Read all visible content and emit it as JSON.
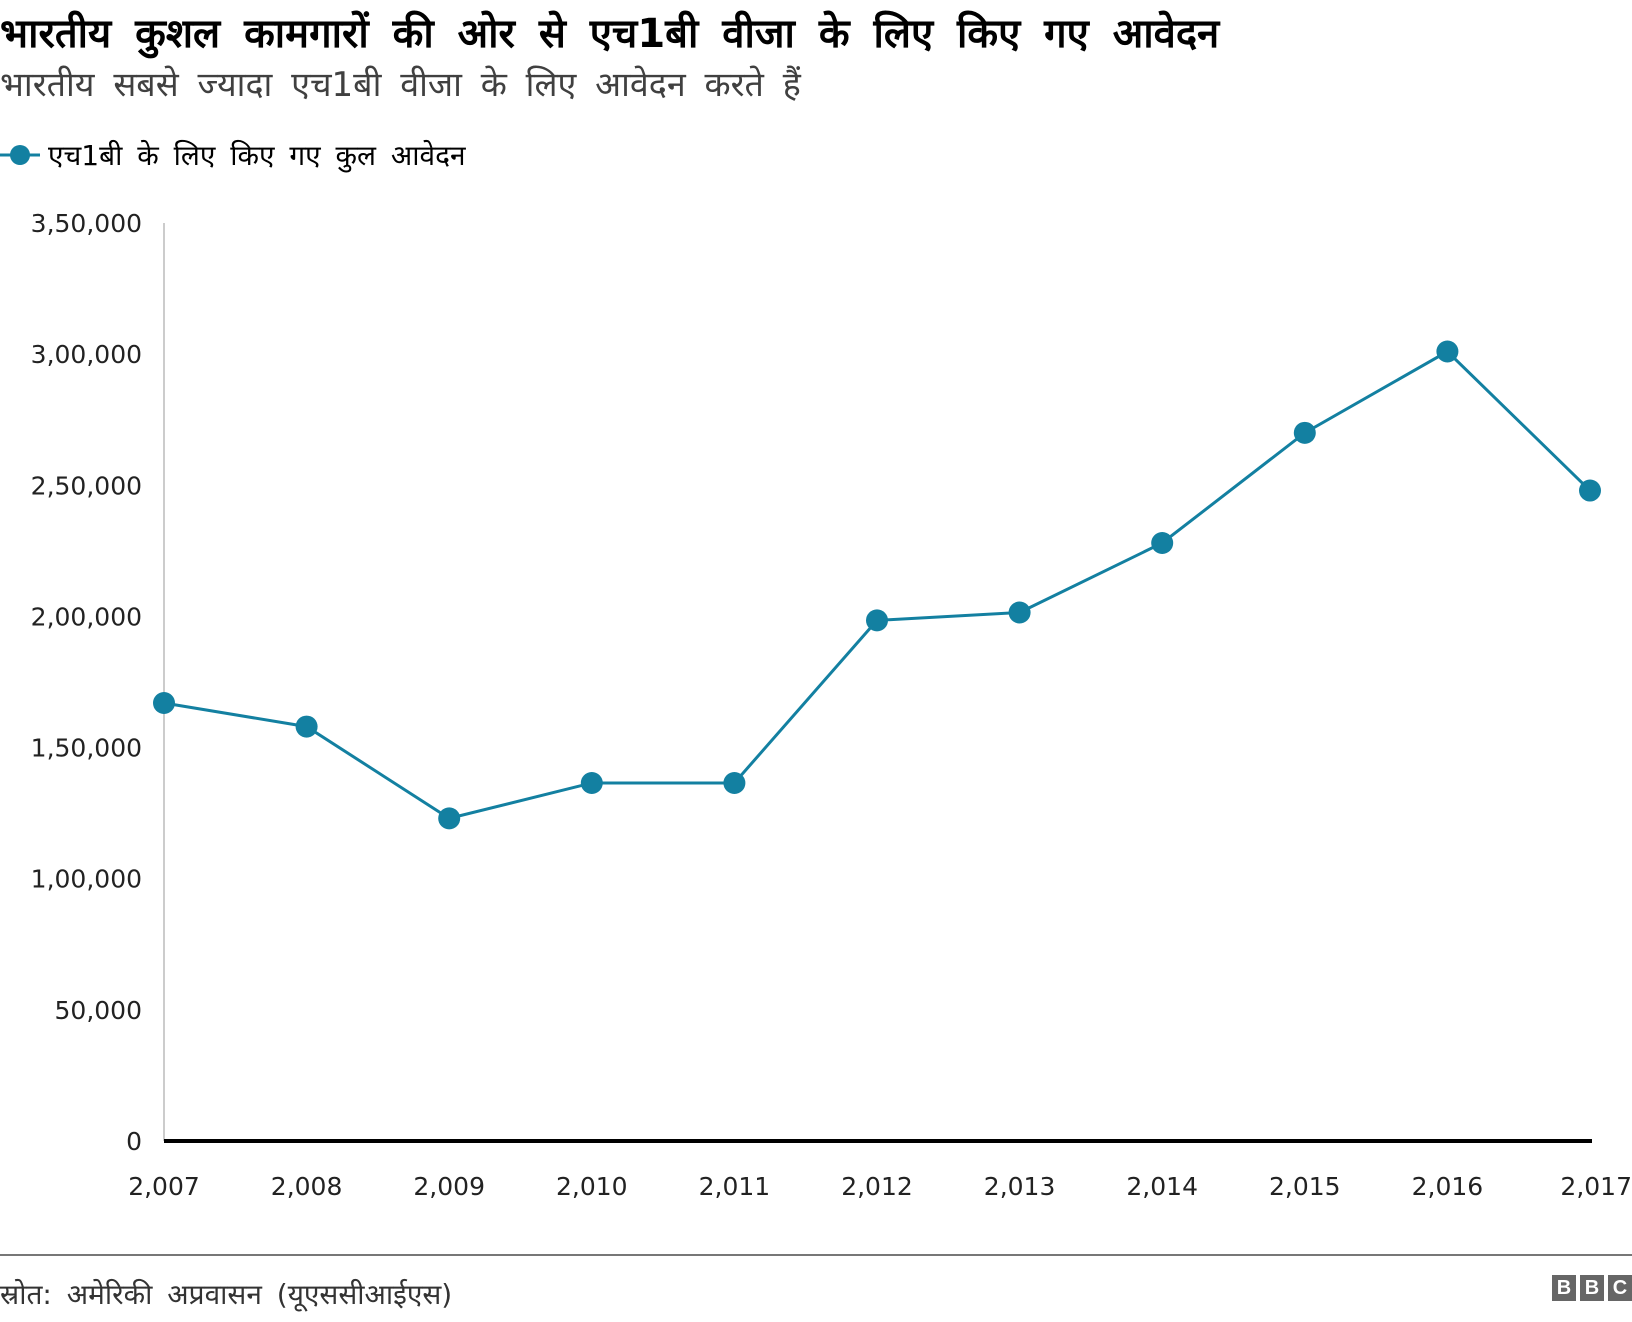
{
  "header": {
    "title": "भारतीय कुशल कामगारों की ओर से एच1बी वीजा के लिए किए गए आवेदन",
    "subtitle": "भारतीय सबसे ज्यादा एच1बी वीजा के लिए आवेदन करते हैं"
  },
  "footer": {
    "source": "स्रोत: अमेरिकी अप्रवासन (यूएससीआईएस)",
    "logo": [
      "B",
      "B",
      "C"
    ]
  },
  "colors": {
    "series": "#1380A1",
    "axis": "#000000",
    "grid": "#cccccc"
  },
  "chart_data": {
    "type": "line",
    "title": "भारतीय कुशल कामगारों की ओर से एच1बी वीजा के लिए किए गए आवेदन",
    "xlabel": "",
    "ylabel": "",
    "x": [
      2007,
      2008,
      2009,
      2010,
      2011,
      2012,
      2013,
      2014,
      2015,
      2016,
      2017
    ],
    "x_tick_labels": [
      "2,007",
      "2,008",
      "2,009",
      "2,010",
      "2,011",
      "2,012",
      "2,013",
      "2,014",
      "2,015",
      "2,016",
      "2,017"
    ],
    "series": [
      {
        "name": "एच1बी के लिए किए गए कुल आवेदन",
        "values": [
          167000,
          158000,
          123000,
          136500,
          136500,
          198500,
          201500,
          228000,
          270000,
          301000,
          248000
        ]
      }
    ],
    "ylim": [
      0,
      350000
    ],
    "y_ticks": [
      0,
      50000,
      100000,
      150000,
      200000,
      250000,
      300000,
      350000
    ],
    "y_tick_labels": [
      "0",
      "50,000",
      "1,00,000",
      "1,50,000",
      "2,00,000",
      "2,50,000",
      "3,00,000",
      "3,50,000"
    ],
    "legend": "top-left",
    "grid": false
  }
}
